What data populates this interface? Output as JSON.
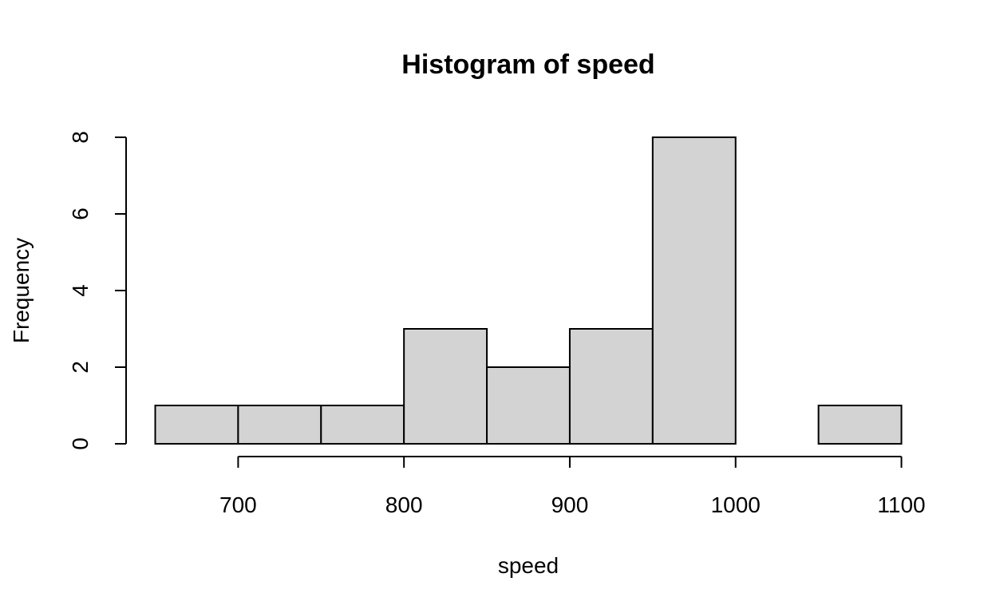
{
  "chart_data": {
    "type": "bar",
    "title": "Histogram of speed",
    "xlabel": "speed",
    "ylabel": "Frequency",
    "bins": [
      {
        "start": 650,
        "end": 700,
        "count": 1
      },
      {
        "start": 700,
        "end": 750,
        "count": 1
      },
      {
        "start": 750,
        "end": 800,
        "count": 1
      },
      {
        "start": 800,
        "end": 850,
        "count": 3
      },
      {
        "start": 850,
        "end": 900,
        "count": 2
      },
      {
        "start": 900,
        "end": 950,
        "count": 3
      },
      {
        "start": 950,
        "end": 1000,
        "count": 8
      },
      {
        "start": 1000,
        "end": 1050,
        "count": 0
      },
      {
        "start": 1050,
        "end": 1100,
        "count": 1
      }
    ],
    "x_ticks": [
      700,
      800,
      900,
      1000,
      1100
    ],
    "y_ticks": [
      0,
      2,
      4,
      6,
      8
    ],
    "xlim": [
      650,
      1100
    ],
    "ylim": [
      0,
      8
    ],
    "grid": false,
    "bar_color": "#d3d3d3",
    "edge_color": "#000000"
  }
}
